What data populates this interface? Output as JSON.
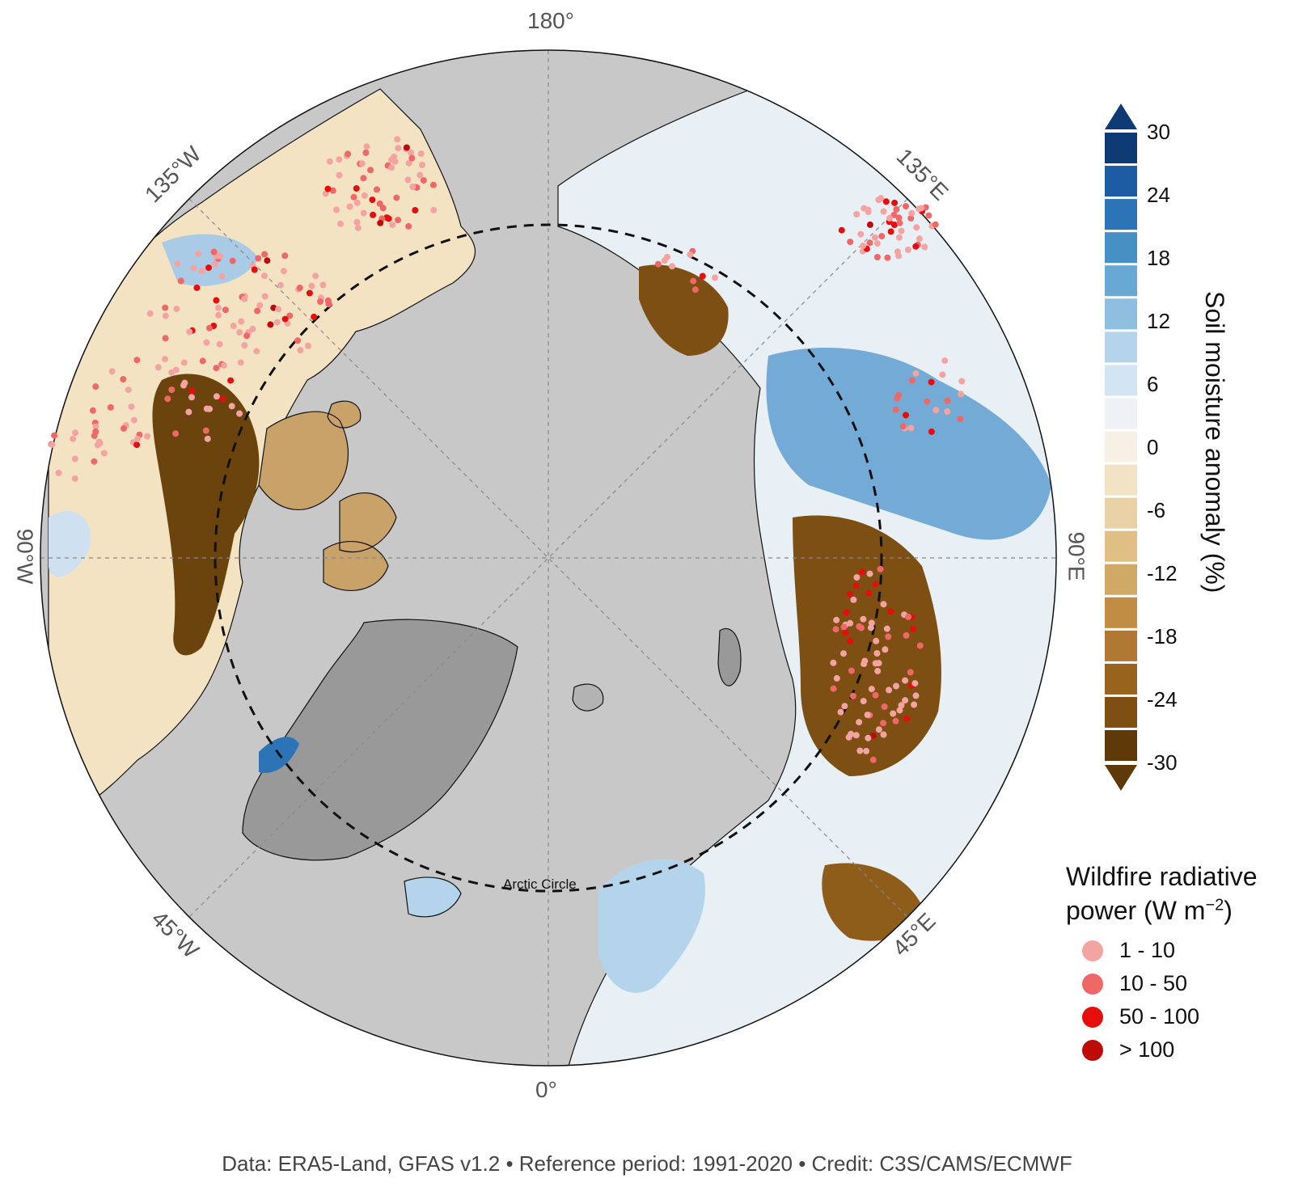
{
  "map": {
    "longitude_labels": {
      "top": "180°",
      "bottom": "0°",
      "left": "90°W",
      "right": "90°E",
      "upper_left": "135°W",
      "upper_right": "135°E",
      "lower_left": "45°W",
      "lower_right": "45°E"
    },
    "arctic_circle_label": "Arctic Circle",
    "colors": {
      "ocean": "#c8c8c8",
      "greenland_ice": "#999999",
      "arctic_circle_line": "#111111"
    }
  },
  "colorbar": {
    "title": "Soil moisture anomaly (%)",
    "ticks": [
      "30",
      "24",
      "18",
      "12",
      "6",
      "0",
      "-6",
      "-12",
      "-18",
      "-24",
      "-30"
    ],
    "colors": [
      "#0d3a72",
      "#1d5ba4",
      "#2d74b7",
      "#4690c4",
      "#68a8d4",
      "#8ebfe0",
      "#b3d4ea",
      "#d3e5f2",
      "#eef2f5",
      "#f6f1e4",
      "#f2e3c4",
      "#e9d3a6",
      "#dfbf83",
      "#d1a966",
      "#c18d45",
      "#b07833",
      "#98631d",
      "#7d4f12",
      "#5f3a08"
    ],
    "extend_max_color": "#0d3a72",
    "extend_min_color": "#5f3a08"
  },
  "wildfire_legend": {
    "title_line1": "Wildfire radiative",
    "title_line2_prefix": "power (W m",
    "title_line2_sup": "−2",
    "title_line2_suffix": ")",
    "items": [
      {
        "label": "1 - 10",
        "color": "#f4a3a3"
      },
      {
        "label": "10 - 50",
        "color": "#f06767"
      },
      {
        "label": "50 - 100",
        "color": "#e60d0d"
      },
      {
        "label": "> 100",
        "color": "#bf0a0a"
      }
    ]
  },
  "credit": "Data: ERA5-Land, GFAS v1.2 • Reference period: 1991-2020 • Credit: C3S/CAMS/ECMWF"
}
